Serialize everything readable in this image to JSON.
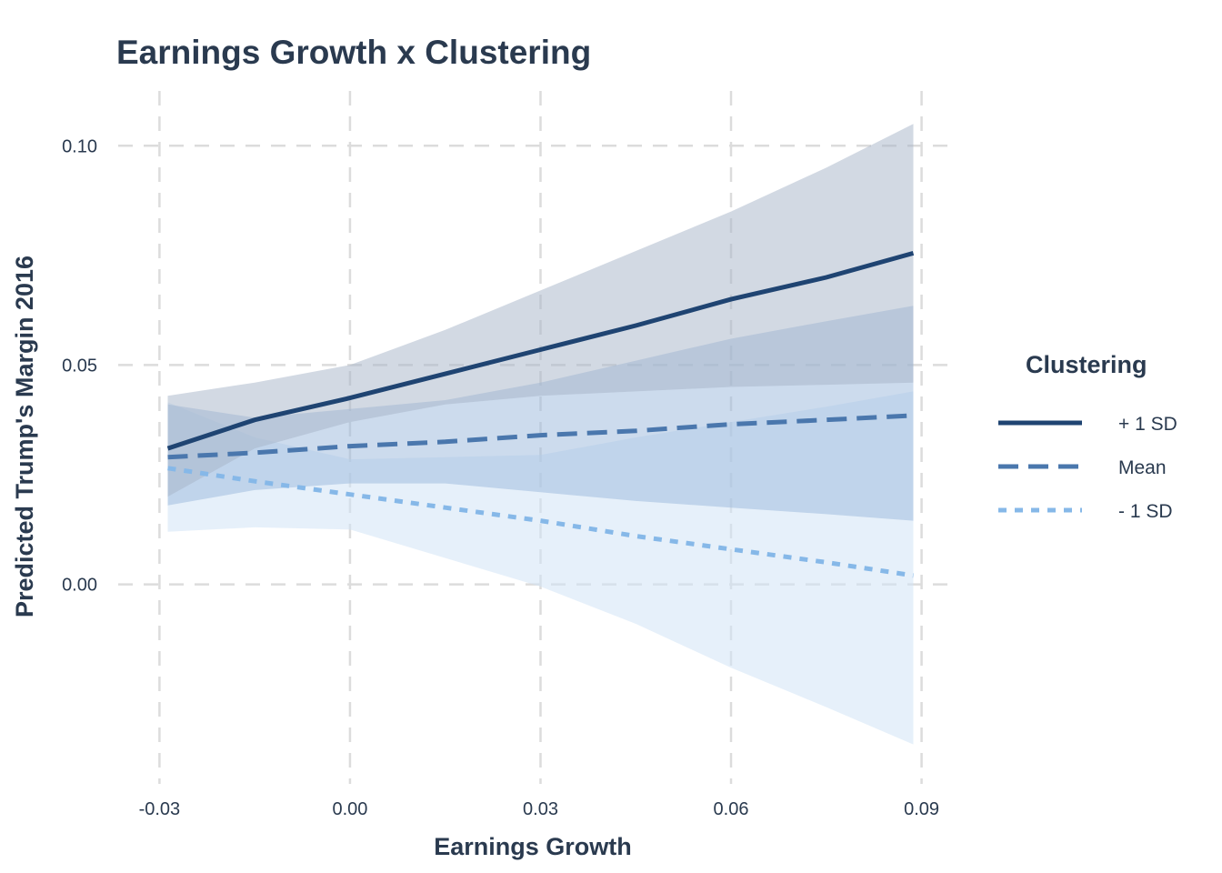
{
  "chart_data": {
    "type": "line",
    "title": "Earnings Growth x Clustering",
    "xlabel": "Earnings Growth",
    "ylabel": "Predicted Trump's Margin 2016",
    "xlim": [
      -0.0365,
      0.0945
    ],
    "ylim": [
      -0.0455,
      0.1125
    ],
    "x_ticks": [
      -0.03,
      0.0,
      0.03,
      0.06,
      0.09
    ],
    "x_tick_labels": [
      "-0.03",
      "0.00",
      "0.03",
      "0.06",
      "0.09"
    ],
    "y_ticks": [
      0.0,
      0.05,
      0.1
    ],
    "y_tick_labels": [
      "0.00",
      "0.05",
      "0.10"
    ],
    "grid": true,
    "legend": {
      "title": "Clustering",
      "position": "right"
    },
    "series": [
      {
        "name": "+ 1 SD",
        "color": "#1f4472",
        "fill": "#a6b4c8",
        "dash": "solid",
        "x": [
          -0.0287,
          -0.015,
          0.0,
          0.015,
          0.03,
          0.045,
          0.06,
          0.075,
          0.0887
        ],
        "y": [
          0.031,
          0.0375,
          0.0425,
          0.048,
          0.0535,
          0.059,
          0.065,
          0.07,
          0.0755
        ],
        "lower": [
          0.02,
          0.031,
          0.037,
          0.041,
          0.043,
          0.044,
          0.045,
          0.0455,
          0.046
        ],
        "upper": [
          0.043,
          0.046,
          0.05,
          0.058,
          0.067,
          0.076,
          0.085,
          0.095,
          0.105
        ]
      },
      {
        "name": "Mean",
        "color": "#4a77ad",
        "fill": "#9ab7dc",
        "dash": "dashed",
        "x": [
          -0.0287,
          -0.015,
          0.0,
          0.015,
          0.03,
          0.045,
          0.06,
          0.075,
          0.0887
        ],
        "y": [
          0.029,
          0.03,
          0.0315,
          0.0325,
          0.034,
          0.035,
          0.0365,
          0.0375,
          0.0385
        ],
        "lower": [
          0.018,
          0.0215,
          0.023,
          0.023,
          0.021,
          0.019,
          0.0175,
          0.016,
          0.0145
        ],
        "upper": [
          0.041,
          0.038,
          0.04,
          0.042,
          0.046,
          0.051,
          0.056,
          0.06,
          0.0635
        ]
      },
      {
        "name": "- 1 SD",
        "color": "#86b8e8",
        "fill": "#d2e3f6",
        "dash": "dotted",
        "x": [
          -0.0287,
          -0.015,
          0.0,
          0.015,
          0.03,
          0.045,
          0.06,
          0.075,
          0.0887
        ],
        "y": [
          0.0265,
          0.0235,
          0.0205,
          0.0175,
          0.0145,
          0.011,
          0.008,
          0.005,
          0.002
        ],
        "lower": [
          0.012,
          0.013,
          0.0125,
          0.006,
          -0.0005,
          -0.009,
          -0.019,
          -0.028,
          -0.0365
        ],
        "upper": [
          0.0415,
          0.0335,
          0.0285,
          0.029,
          0.0295,
          0.0335,
          0.037,
          0.0405,
          0.044
        ]
      }
    ]
  }
}
